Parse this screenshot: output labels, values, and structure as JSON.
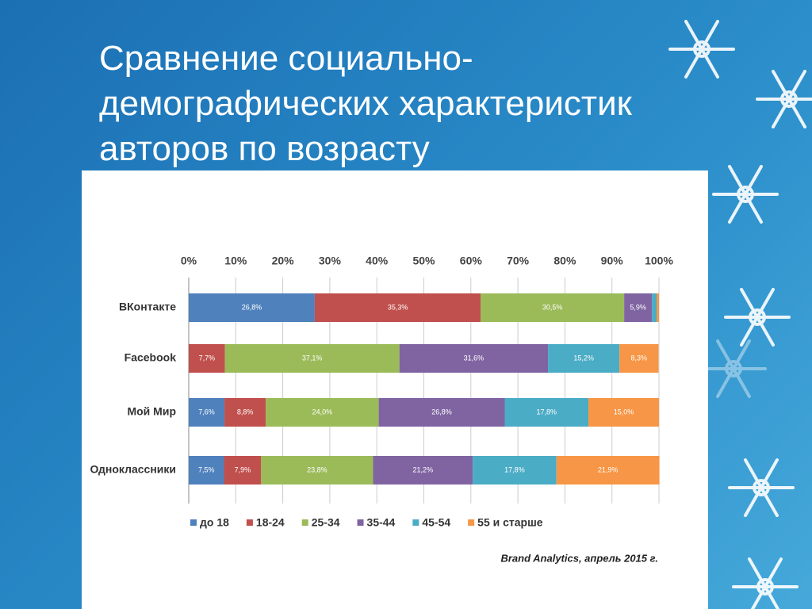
{
  "chart_data": {
    "type": "stacked_bar_horizontal",
    "title": "Сравнение социально-демографических характеристик авторов по возрасту",
    "source": "Brand Analytics, апрель 2015 г.",
    "categories": [
      "ВКонтакте",
      "Facebook",
      "Мой Мир",
      "Одноклассники"
    ],
    "xlim": [
      0,
      100
    ],
    "xticks": [
      {
        "value": 0,
        "label": "0%"
      },
      {
        "value": 10,
        "label": "10%"
      },
      {
        "value": 20,
        "label": "20%"
      },
      {
        "value": 30,
        "label": "30%"
      },
      {
        "value": 40,
        "label": "40%"
      },
      {
        "value": 50,
        "label": "50%"
      },
      {
        "value": 60,
        "label": "60%"
      },
      {
        "value": 70,
        "label": "70%"
      },
      {
        "value": 80,
        "label": "80%"
      },
      {
        "value": 90,
        "label": "90%"
      },
      {
        "value": 100,
        "label": "100%"
      }
    ],
    "grid": true,
    "legend": "bottom",
    "series": [
      {
        "name": "до 18",
        "color": "#4f81bd",
        "values": [
          26.8,
          null,
          7.6,
          7.5
        ],
        "value_labels": [
          "26,8%",
          null,
          "7,6%",
          "7,5%"
        ]
      },
      {
        "name": "18-24",
        "color": "#c0504d",
        "values": [
          35.3,
          7.7,
          8.8,
          7.9
        ],
        "value_labels": [
          "35,3%",
          "7,7%",
          "8,8%",
          "7,9%"
        ]
      },
      {
        "name": "25-34",
        "color": "#9bbb59",
        "values": [
          30.5,
          37.1,
          24.0,
          23.8
        ],
        "value_labels": [
          "30,5%",
          "37,1%",
          "24,0%",
          "23,8%"
        ]
      },
      {
        "name": "35-44",
        "color": "#8064a2",
        "values": [
          5.9,
          31.6,
          26.8,
          21.2
        ],
        "value_labels": [
          "5,9%",
          "31,6%",
          "26,8%",
          "21,2%"
        ]
      },
      {
        "name": "45-54",
        "color": "#4bacc6",
        "values": [
          1.0,
          15.2,
          17.8,
          17.8
        ],
        "value_labels": [
          null,
          "15,2%",
          "17,8%",
          "17,8%"
        ]
      },
      {
        "name": "55 и старше",
        "color": "#f79646",
        "values": [
          0.5,
          8.3,
          15.0,
          21.9
        ],
        "value_labels": [
          null,
          "8,3%",
          "15,0%",
          "21,9%"
        ]
      }
    ]
  }
}
